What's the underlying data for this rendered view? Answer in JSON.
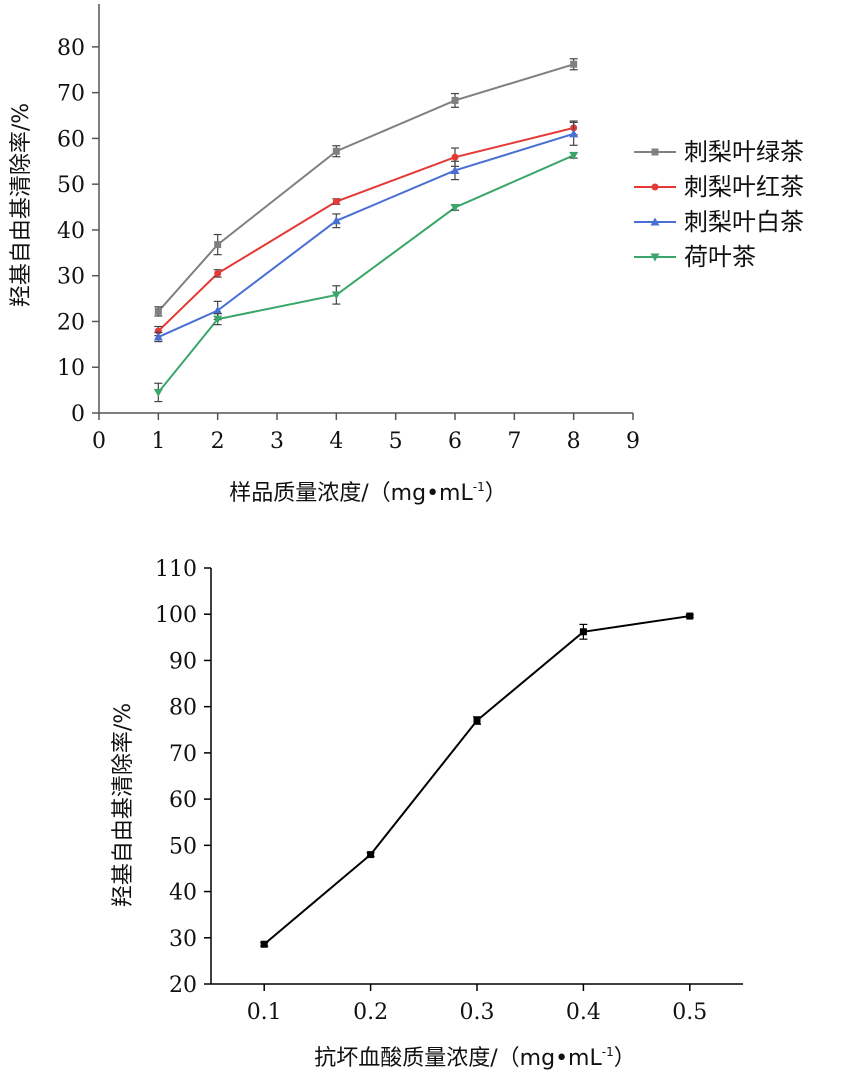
{
  "chart_data": [
    {
      "type": "line",
      "xlabel_main": "样品质量浓度/（mg•mL",
      "xlabel_sup": "-1",
      "xlabel_end": "）",
      "ylabel": "羟基自由基清除率/%",
      "xlim": [
        0,
        9
      ],
      "ylim": [
        0,
        85
      ],
      "xticks": [
        0,
        1,
        2,
        3,
        4,
        5,
        6,
        7,
        8,
        9
      ],
      "yticks": [
        0,
        10,
        20,
        30,
        40,
        50,
        60,
        70,
        80
      ],
      "x": [
        1,
        2,
        4,
        6,
        8
      ],
      "series": [
        {
          "name": "刺梨叶绿茶",
          "color": "#808080",
          "marker": "square",
          "values": [
            22.2,
            36.8,
            57.2,
            68.3,
            76.2
          ],
          "errors": [
            1.0,
            2.2,
            1.2,
            1.5,
            1.2
          ]
        },
        {
          "name": "刺梨叶红茶",
          "color": "#e53935",
          "marker": "circle",
          "values": [
            17.9,
            30.5,
            46.2,
            55.9,
            62.3
          ],
          "errors": [
            1.0,
            0.8,
            0.6,
            2.0,
            1.5
          ]
        },
        {
          "name": "刺梨叶白茶",
          "color": "#4a6fd4",
          "marker": "triangle",
          "values": [
            16.6,
            22.4,
            42.0,
            53.0,
            61.0
          ],
          "errors": [
            1.0,
            2.0,
            1.5,
            2.0,
            2.5
          ]
        },
        {
          "name": "荷叶茶",
          "color": "#3aa66a",
          "marker": "triangle-down",
          "values": [
            4.5,
            20.5,
            25.8,
            44.9,
            56.3
          ],
          "errors": [
            2.0,
            1.2,
            2.0,
            0.6,
            0.6
          ]
        }
      ]
    },
    {
      "type": "line",
      "xlabel_main": "抗坏血酸质量浓度/（mg•mL",
      "xlabel_sup": "-1",
      "xlabel_end": "）",
      "ylabel": "羟基自由基清除率/%",
      "xlim": [
        0.05,
        0.55
      ],
      "ylim": [
        20,
        110
      ],
      "xticks": [
        "0.1",
        "0.2",
        "0.3",
        "0.4",
        "0.5"
      ],
      "yticks": [
        20,
        30,
        40,
        50,
        60,
        70,
        80,
        90,
        100,
        110
      ],
      "x": [
        0.1,
        0.2,
        0.3,
        0.4,
        0.5
      ],
      "series": [
        {
          "name": "抗坏血酸",
          "color": "#000000",
          "marker": "square",
          "values": [
            28.6,
            48.0,
            77.0,
            96.2,
            99.6
          ],
          "errors": [
            0.4,
            0.4,
            0.8,
            1.6,
            0.3
          ]
        }
      ]
    }
  ]
}
